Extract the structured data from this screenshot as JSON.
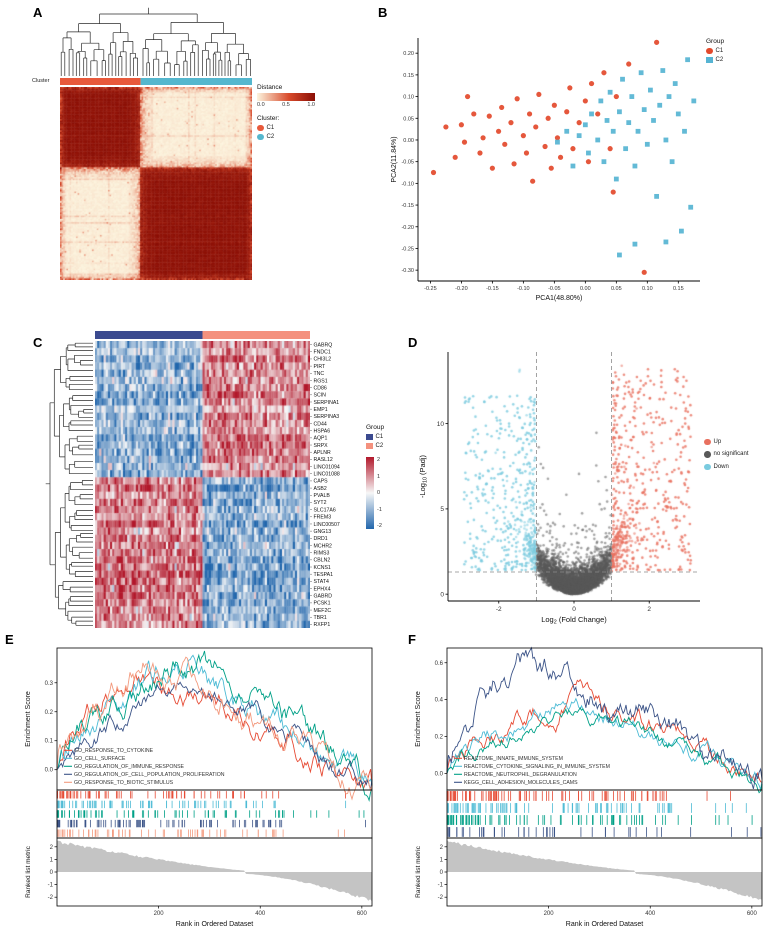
{
  "figure": {
    "panel_labels": [
      "A",
      "B",
      "C",
      "D",
      "E",
      "F"
    ],
    "background": "#ffffff"
  },
  "chart_data": [
    {
      "id": "A",
      "type": "heatmap",
      "subtype": "consensus-clustering-matrix",
      "annotation_label": "Cluster",
      "cluster_legend_title": "Cluster:",
      "clusters": [
        {
          "name": "C1",
          "color": "#E8593B",
          "fraction": 0.42
        },
        {
          "name": "C2",
          "color": "#55B7CE",
          "fraction": 0.58
        }
      ],
      "colorbar": {
        "title": "Distance",
        "tick_labels": [
          "0.0",
          "0.5",
          "1.0"
        ],
        "low": "#FCF4DE",
        "mid": "#D84A2B",
        "high": "#8A0E05"
      },
      "matrix_size": 120,
      "dendrogram": true,
      "seed": 11
    },
    {
      "id": "B",
      "type": "scatter",
      "subtype": "pca",
      "xlabel": "PCA1(48.80%)",
      "ylabel": "PCA2(11.84%)",
      "legend_title": "Group",
      "xlim": [
        -0.27,
        0.185
      ],
      "ylim": [
        -0.325,
        0.235
      ],
      "xticks": [
        -0.25,
        -0.2,
        -0.15,
        -0.1,
        -0.05,
        0,
        0.05,
        0.1,
        0.15
      ],
      "xtick_labels": [
        "-0.25",
        "-0.20",
        "-0.15",
        "-0.10",
        "-0.05",
        "0.00",
        "0.05",
        "0.10",
        "0.15"
      ],
      "yticks": [
        -0.3,
        -0.25,
        -0.2,
        -0.15,
        -0.1,
        -0.05,
        0,
        0.05,
        0.1,
        0.15,
        0.2
      ],
      "ytick_labels": [
        "-0.30",
        "-0.25",
        "-0.20",
        "-0.15",
        "-0.10",
        "-0.05",
        "0.00",
        "0.05",
        "0.10",
        "0.15",
        "0.20"
      ],
      "series": [
        {
          "name": "C1",
          "color": "#E3492B",
          "marker": "circle",
          "points": [
            [
              -0.245,
              -0.075
            ],
            [
              -0.225,
              0.03
            ],
            [
              -0.21,
              -0.04
            ],
            [
              -0.2,
              0.035
            ],
            [
              -0.195,
              -0.005
            ],
            [
              -0.19,
              0.1
            ],
            [
              -0.18,
              0.06
            ],
            [
              -0.17,
              -0.03
            ],
            [
              -0.165,
              0.005
            ],
            [
              -0.155,
              0.055
            ],
            [
              -0.15,
              -0.065
            ],
            [
              -0.14,
              0.02
            ],
            [
              -0.135,
              0.075
            ],
            [
              -0.13,
              -0.01
            ],
            [
              -0.12,
              0.04
            ],
            [
              -0.115,
              -0.055
            ],
            [
              -0.11,
              0.095
            ],
            [
              -0.1,
              0.01
            ],
            [
              -0.095,
              -0.03
            ],
            [
              -0.09,
              0.06
            ],
            [
              -0.085,
              -0.095
            ],
            [
              -0.08,
              0.03
            ],
            [
              -0.075,
              0.105
            ],
            [
              -0.065,
              -0.015
            ],
            [
              -0.06,
              0.05
            ],
            [
              -0.055,
              -0.065
            ],
            [
              -0.05,
              0.08
            ],
            [
              -0.045,
              0.005
            ],
            [
              -0.04,
              -0.04
            ],
            [
              -0.03,
              0.065
            ],
            [
              -0.025,
              0.12
            ],
            [
              -0.02,
              -0.02
            ],
            [
              -0.01,
              0.04
            ],
            [
              0,
              0.09
            ],
            [
              0.005,
              -0.05
            ],
            [
              0.01,
              0.13
            ],
            [
              0.02,
              0.06
            ],
            [
              0.03,
              0.155
            ],
            [
              0.04,
              -0.02
            ],
            [
              0.05,
              0.1
            ],
            [
              0.07,
              0.175
            ],
            [
              0.115,
              0.225
            ],
            [
              0.095,
              -0.305
            ],
            [
              0.045,
              -0.12
            ]
          ]
        },
        {
          "name": "C2",
          "color": "#56B4D3",
          "marker": "square",
          "points": [
            [
              -0.045,
              -0.005
            ],
            [
              -0.03,
              0.02
            ],
            [
              -0.02,
              -0.06
            ],
            [
              -0.01,
              0.01
            ],
            [
              0,
              0.035
            ],
            [
              0.005,
              -0.03
            ],
            [
              0.01,
              0.06
            ],
            [
              0.02,
              0
            ],
            [
              0.025,
              0.09
            ],
            [
              0.03,
              -0.05
            ],
            [
              0.035,
              0.045
            ],
            [
              0.04,
              0.11
            ],
            [
              0.045,
              0.02
            ],
            [
              0.05,
              -0.09
            ],
            [
              0.055,
              0.065
            ],
            [
              0.06,
              0.14
            ],
            [
              0.065,
              -0.02
            ],
            [
              0.07,
              0.04
            ],
            [
              0.075,
              0.1
            ],
            [
              0.08,
              -0.06
            ],
            [
              0.085,
              0.02
            ],
            [
              0.09,
              0.155
            ],
            [
              0.095,
              0.07
            ],
            [
              0.1,
              -0.01
            ],
            [
              0.105,
              0.115
            ],
            [
              0.11,
              0.045
            ],
            [
              0.115,
              -0.13
            ],
            [
              0.12,
              0.08
            ],
            [
              0.125,
              0.16
            ],
            [
              0.13,
              0
            ],
            [
              0.135,
              0.1
            ],
            [
              0.14,
              -0.05
            ],
            [
              0.145,
              0.13
            ],
            [
              0.15,
              0.06
            ],
            [
              0.155,
              -0.21
            ],
            [
              0.16,
              0.02
            ],
            [
              0.165,
              0.185
            ],
            [
              0.17,
              -0.155
            ],
            [
              0.175,
              0.09
            ],
            [
              0.08,
              -0.24
            ],
            [
              0.055,
              -0.265
            ],
            [
              0.13,
              -0.235
            ]
          ]
        }
      ]
    },
    {
      "id": "C",
      "type": "heatmap",
      "subtype": "gene-expression",
      "legend_group_title": "Group",
      "groups": [
        {
          "name": "C1",
          "color": "#3B4A8F",
          "fraction": 0.5
        },
        {
          "name": "C2",
          "color": "#F4917E",
          "fraction": 0.5
        }
      ],
      "colorbar": {
        "tick_labels": [
          "2",
          "1",
          "0",
          "-1",
          "-2"
        ],
        "low": "#2166AC",
        "mid": "#F7F7F7",
        "high": "#B2182B"
      },
      "genes": [
        "GABRQ",
        "FNDC1",
        "CHI3L2",
        "PIRT",
        "TNC",
        "RGS1",
        "CD86",
        "SCIN",
        "SERPINA1",
        "EMP1",
        "SERPINA3",
        "CD44",
        "HSPA6",
        "AQP1",
        "SRPX",
        "APLNR",
        "RASL12",
        "LINC01094",
        "LINC01088",
        "CAPS",
        "ASB2",
        "PVALB",
        "SYT2",
        "SLC17A6",
        "FREM3",
        "LINC00507",
        "GNG13",
        "DRD1",
        "MCHR2",
        "RIMS3",
        "CBLN2",
        "KCNS1",
        "TESPA1",
        "STAT4",
        "EPHX4",
        "GABRD",
        "PCSK1",
        "MEF2C",
        "TBR1",
        "RXFP1"
      ],
      "n_samples": 100,
      "up_in_c2_block_end": 19,
      "seed": 23
    },
    {
      "id": "D",
      "type": "scatter",
      "subtype": "volcano",
      "xlabel_parts": [
        "Log",
        "2",
        " (Fold Change)"
      ],
      "ylabel_parts": [
        "-Log",
        "10",
        " (Padj)"
      ],
      "xlim": [
        -3.35,
        3.35
      ],
      "ylim": [
        -0.4,
        14.2
      ],
      "xticks": [
        -2,
        0,
        2
      ],
      "xtick_labels": [
        "-2",
        "0",
        "2"
      ],
      "yticks": [
        0,
        5,
        10
      ],
      "ytick_labels": [
        "0",
        "5",
        "10"
      ],
      "thresholds": {
        "log2fc": [
          -1,
          1
        ],
        "neglog10padj": 1.3
      },
      "categories": [
        {
          "name": "Up",
          "color": "#E8705F"
        },
        {
          "name": "no significant",
          "color": "#595959"
        },
        {
          "name": "Down",
          "color": "#7ACBDF"
        }
      ],
      "n_background": 4500,
      "n_up": 450,
      "n_down": 380,
      "seed": 5
    },
    {
      "id": "E",
      "type": "gsea",
      "es_ylabel": "Enrichment Score",
      "rank_ylabel": "Ranked list metric",
      "xlabel": "Rank in Ordered Dataset",
      "xlim": [
        0,
        620
      ],
      "xticks": [
        200,
        400,
        600
      ],
      "xtick_labels": [
        "200",
        "400",
        "600"
      ],
      "es_yticks": [
        0,
        0.1,
        0.2,
        0.3
      ],
      "es_ytick_labels": [
        "0.0",
        "0.1",
        "0.2",
        "0.3"
      ],
      "es_ylim": [
        -0.07,
        0.42
      ],
      "rank_yticks": [
        2,
        1,
        0,
        -1,
        -2
      ],
      "rank_ytick_labels": [
        "2",
        "1",
        "0",
        "-1",
        "-2"
      ],
      "rank_ylim": [
        -2.7,
        2.7
      ],
      "zero_cross": 370,
      "series": [
        {
          "name": "GO_RESPONSE_TO_CYTOKINE",
          "color": "#E64B35",
          "peak_rank": 150,
          "peak_es": 0.33,
          "tick_count": 75
        },
        {
          "name": "GO_CELL_SURFACE",
          "color": "#4DBBD5",
          "peak_rank": 235,
          "peak_es": 0.35,
          "tick_count": 80
        },
        {
          "name": "GO_REGULATION_OF_IMMUNE_RESPONSE",
          "color": "#00A087",
          "peak_rank": 275,
          "peak_es": 0.37,
          "tick_count": 70
        },
        {
          "name": "GO_REGULATION_OF_CELL_POPULATION_PROLIFERATION",
          "color": "#3C5488",
          "peak_rank": 245,
          "peak_es": 0.27,
          "tick_count": 85
        },
        {
          "name": "GO_RESPONSE_TO_BIOTIC_STIMULUS",
          "color": "#F39B7F",
          "peak_rank": 170,
          "peak_es": 0.36,
          "tick_count": 65
        }
      ],
      "seed": 31
    },
    {
      "id": "F",
      "type": "gsea",
      "es_ylabel": "Enrichment Score",
      "rank_ylabel": "Ranked list metric",
      "xlabel": "Rank in Ordered Dataset",
      "xlim": [
        0,
        620
      ],
      "xticks": [
        200,
        400,
        600
      ],
      "xtick_labels": [
        "200",
        "400",
        "600"
      ],
      "es_yticks": [
        0,
        0.2,
        0.4,
        0.6
      ],
      "es_ytick_labels": [
        "0.0",
        "0.2",
        "0.4",
        "0.6"
      ],
      "es_ylim": [
        -0.09,
        0.68
      ],
      "rank_yticks": [
        2,
        1,
        0,
        -1,
        -2
      ],
      "rank_ytick_labels": [
        "2",
        "1",
        "0",
        "-1",
        "-2"
      ],
      "rank_ylim": [
        -2.7,
        2.7
      ],
      "zero_cross": 370,
      "series": [
        {
          "name": "REACTOME_INNATE_IMMUNE_SYSTEM",
          "color": "#E64B35",
          "peak_rank": 255,
          "peak_es": 0.42,
          "tick_count": 95
        },
        {
          "name": "REACTOME_CYTOKINE_SIGNALING_IN_IMMUNE_SYSTEM",
          "color": "#4DBBD5",
          "peak_rank": 235,
          "peak_es": 0.38,
          "tick_count": 90
        },
        {
          "name": "REACTOME_NEUTROPHIL_DEGRANULATION",
          "color": "#00A087",
          "peak_rank": 250,
          "peak_es": 0.35,
          "tick_count": 85
        },
        {
          "name": "KEGG_CELL_ADHESION_MOLECULES_CAMS",
          "color": "#3C5488",
          "peak_rank": 150,
          "peak_es": 0.62,
          "tick_count": 45
        }
      ],
      "seed": 41
    }
  ]
}
